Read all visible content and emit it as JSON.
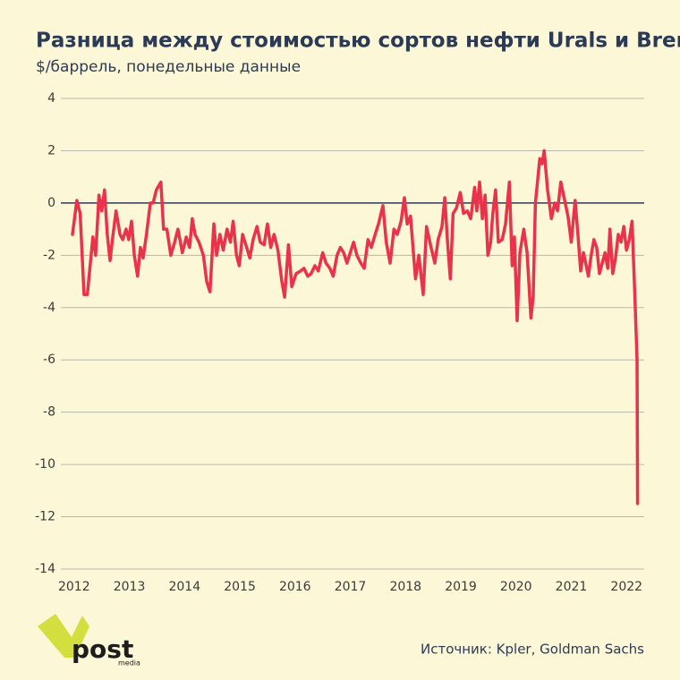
{
  "chart_data": {
    "type": "line",
    "title": "Разница между стоимостью сортов нефти Urals и Brent",
    "subtitle": "$/баррель, понедельные данные",
    "source": "Источник: Kpler, Goldman Sachs",
    "color": "#e8334a",
    "x": [
      2011.97,
      2012.05,
      2012.11,
      2012.18,
      2012.24,
      2012.34,
      2012.39,
      2012.45,
      2012.5,
      2012.55,
      2012.6,
      2012.65,
      2012.7,
      2012.76,
      2012.83,
      2012.88,
      2012.94,
      2012.99,
      2013.04,
      2013.09,
      2013.15,
      2013.2,
      2013.25,
      2013.31,
      2013.38,
      2013.43,
      2013.49,
      2013.57,
      2013.62,
      2013.68,
      2013.75,
      2013.82,
      2013.88,
      2013.96,
      2014.03,
      2014.09,
      2014.14,
      2014.19,
      2014.26,
      2014.34,
      2014.4,
      2014.46,
      2014.53,
      2014.58,
      2014.64,
      2014.7,
      2014.77,
      2014.83,
      2014.88,
      2014.94,
      2014.99,
      2015.05,
      2015.11,
      2015.18,
      2015.24,
      2015.31,
      2015.37,
      2015.44,
      2015.5,
      2015.56,
      2015.62,
      2015.69,
      2015.76,
      2015.81,
      2015.88,
      2015.94,
      2016.02,
      2016.1,
      2016.16,
      2016.23,
      2016.29,
      2016.36,
      2016.42,
      2016.5,
      2016.56,
      2016.63,
      2016.69,
      2016.76,
      2016.82,
      2016.88,
      2016.94,
      2017.06,
      2017.12,
      2017.19,
      2017.25,
      2017.32,
      2017.38,
      2017.45,
      2017.51,
      2017.59,
      2017.65,
      2017.72,
      2017.79,
      2017.85,
      2017.92,
      2017.98,
      2018.03,
      2018.09,
      2018.18,
      2018.24,
      2018.32,
      2018.38,
      2018.45,
      2018.53,
      2018.59,
      2018.66,
      2018.71,
      2018.76,
      2018.81,
      2018.86,
      2018.92,
      2018.99,
      2019.05,
      2019.12,
      2019.18,
      2019.25,
      2019.29,
      2019.34,
      2019.39,
      2019.44,
      2019.49,
      2019.54,
      2019.58,
      2019.63,
      2019.68,
      2019.75,
      2019.81,
      2019.88,
      2019.93,
      2019.97,
      2020.02,
      2020.07,
      2020.14,
      2020.2,
      2020.27,
      2020.31,
      2020.35,
      2020.43,
      2020.47,
      2020.51,
      2020.57,
      2020.64,
      2020.7,
      2020.75,
      2020.81,
      2020.88,
      2020.94,
      2021.0,
      2021.07,
      2021.12,
      2021.17,
      2021.22,
      2021.26,
      2021.31,
      2021.36,
      2021.41,
      2021.46,
      2021.51,
      2021.56,
      2021.61,
      2021.66,
      2021.7,
      2021.75,
      2021.8,
      2021.85,
      2021.9,
      2021.95,
      2022.0,
      2022.05,
      2022.1,
      2022.15,
      2022.19,
      2022.2
    ],
    "values": [
      -1.2,
      0.1,
      -0.4,
      -3.5,
      -3.5,
      -1.3,
      -2.0,
      0.3,
      -0.3,
      0.5,
      -1.2,
      -2.2,
      -1.3,
      -0.3,
      -1.2,
      -1.4,
      -1.0,
      -1.4,
      -0.7,
      -2.0,
      -2.8,
      -1.7,
      -2.1,
      -1.2,
      0.0,
      0.0,
      0.5,
      0.8,
      -1.0,
      -1.0,
      -2.0,
      -1.5,
      -1.0,
      -1.9,
      -1.3,
      -1.7,
      -0.6,
      -1.2,
      -1.5,
      -2.0,
      -3.0,
      -3.4,
      -0.8,
      -2.0,
      -1.2,
      -1.8,
      -1.0,
      -1.5,
      -0.7,
      -2.0,
      -2.4,
      -1.2,
      -1.6,
      -2.1,
      -1.4,
      -0.9,
      -1.5,
      -1.6,
      -0.8,
      -1.7,
      -1.2,
      -1.8,
      -3.0,
      -3.6,
      -1.6,
      -3.2,
      -2.7,
      -2.6,
      -2.5,
      -2.8,
      -2.7,
      -2.4,
      -2.6,
      -1.9,
      -2.3,
      -2.5,
      -2.8,
      -2.0,
      -1.7,
      -1.9,
      -2.3,
      -1.5,
      -2.0,
      -2.3,
      -2.5,
      -1.4,
      -1.7,
      -1.2,
      -0.8,
      -0.1,
      -1.5,
      -2.3,
      -1.0,
      -1.2,
      -0.7,
      0.2,
      -0.8,
      -0.5,
      -2.9,
      -2.0,
      -3.5,
      -0.9,
      -1.6,
      -2.3,
      -1.4,
      -0.9,
      0.2,
      -1.5,
      -2.9,
      -0.4,
      -0.2,
      0.4,
      -0.4,
      -0.3,
      -0.6,
      0.6,
      -0.3,
      0.8,
      -0.6,
      0.3,
      -2.0,
      -1.5,
      -0.4,
      0.5,
      -1.5,
      -1.4,
      -0.8,
      0.8,
      -2.4,
      -1.3,
      -4.5,
      -1.9,
      -1.0,
      -1.9,
      -4.4,
      -3.6,
      0.0,
      1.7,
      1.5,
      2.0,
      0.5,
      -0.6,
      0.0,
      -0.3,
      0.8,
      0.1,
      -0.5,
      -1.5,
      0.1,
      -1.2,
      -2.6,
      -1.9,
      -2.3,
      -2.8,
      -2.0,
      -1.4,
      -1.7,
      -2.7,
      -2.3,
      -1.9,
      -2.5,
      -1.0,
      -2.7,
      -2.1,
      -1.2,
      -1.5,
      -0.9,
      -1.8,
      -1.4,
      -0.7,
      -3.5,
      -6.0,
      -11.5
    ],
    "xlim": [
      2011.76,
      2022.32
    ],
    "xticks": [
      2012,
      2013,
      2014,
      2015,
      2016,
      2017,
      2018,
      2019,
      2020,
      2021,
      2022
    ],
    "ylim": [
      -14,
      4
    ],
    "yticks": [
      -14,
      -12,
      -10,
      -8,
      -6,
      -4,
      -2,
      0,
      2,
      4
    ],
    "grid": true
  },
  "logo": {
    "name": "post",
    "sub": "media"
  }
}
